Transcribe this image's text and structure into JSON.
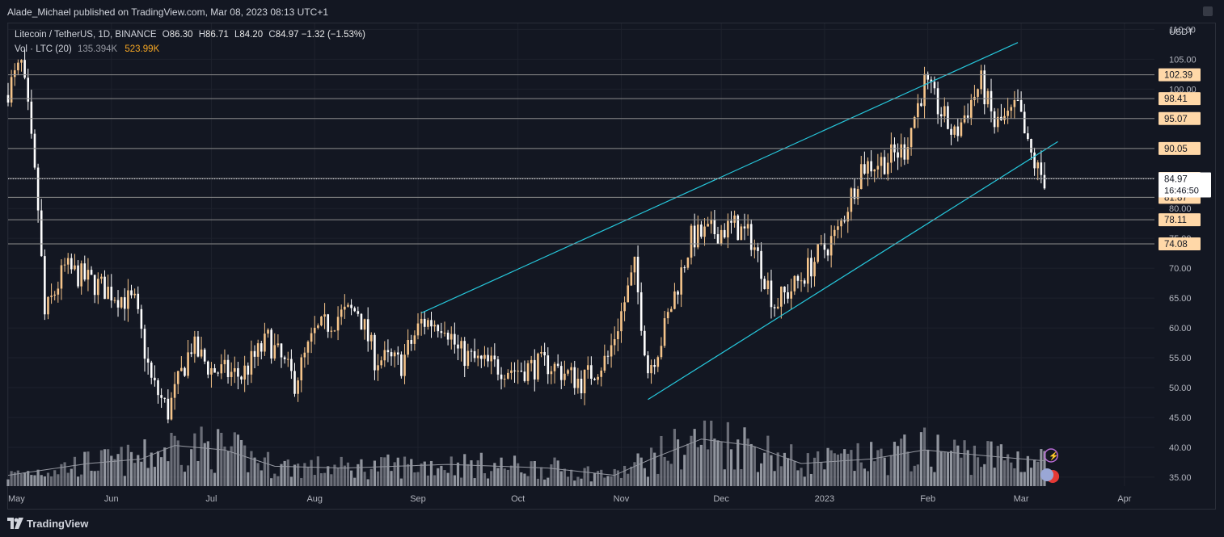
{
  "header": {
    "published_text": "Alade_Michael published on TradingView.com, Mar 08, 2023 08:13 UTC+1"
  },
  "legend": {
    "symbol": "Litecoin / TetherUS, 1D, BINANCE",
    "o_label": "O",
    "o_value": "86.30",
    "h_label": "H",
    "h_value": "86.71",
    "l_label": "L",
    "l_value": "84.20",
    "c_label": "C",
    "c_value": "84.97",
    "change": "−1.32 (−1.53%)",
    "vol_label": "Vol · LTC (20)",
    "vol_value": "135.394K",
    "vol_ma_value": "523.99K"
  },
  "footer": {
    "brand": "TradingView"
  },
  "colors": {
    "background": "#131722",
    "grid": "#1e222d",
    "up_candle": "#f5c48a",
    "down_candle": "#ffffff",
    "volume": "#b2b5be",
    "volume_ma": "#9598a1",
    "channel": "#26c6da",
    "level_line": "#8c8c8c",
    "level_tag": "#ffd8a8",
    "last_price_tag": "#ffffff"
  },
  "chart_data": {
    "type": "candlestick",
    "title": "Litecoin / TetherUS, 1D, BINANCE",
    "y_axis_unit": "USDT",
    "ylim": [
      33.5,
      111
    ],
    "y_ticks": [
      35,
      40,
      45,
      50,
      55,
      60,
      65,
      70,
      75,
      80,
      85,
      90,
      95,
      100,
      105,
      110
    ],
    "y_tick_labels": [
      "35.00",
      "40.00",
      "45.00",
      "50.00",
      "55.00",
      "60.00",
      "65.00",
      "70.00",
      "75.00",
      "80.00",
      "85.00",
      "90.00",
      "95.00",
      "100.00",
      "105.00",
      "110.00"
    ],
    "x_range": [
      "2022-05-01",
      "2023-04-10"
    ],
    "x_ticks": [
      {
        "label": "May",
        "date": "2022-05-01"
      },
      {
        "label": "Jun",
        "date": "2022-06-01"
      },
      {
        "label": "Jul",
        "date": "2022-07-01"
      },
      {
        "label": "Aug",
        "date": "2022-08-01"
      },
      {
        "label": "Sep",
        "date": "2022-09-01"
      },
      {
        "label": "Oct",
        "date": "2022-10-01"
      },
      {
        "label": "Nov",
        "date": "2022-11-01"
      },
      {
        "label": "Dec",
        "date": "2022-12-01"
      },
      {
        "label": "2023",
        "date": "2023-01-01"
      },
      {
        "label": "Feb",
        "date": "2023-02-01"
      },
      {
        "label": "Mar",
        "date": "2023-03-01"
      },
      {
        "label": "Apr",
        "date": "2023-04-01"
      }
    ],
    "close_path": [
      {
        "date": "2022-05-01",
        "close": 100
      },
      {
        "date": "2022-05-05",
        "close": 104
      },
      {
        "date": "2022-05-07",
        "close": 96
      },
      {
        "date": "2022-05-10",
        "close": 80
      },
      {
        "date": "2022-05-12",
        "close": 62
      },
      {
        "date": "2022-05-18",
        "close": 70
      },
      {
        "date": "2022-05-25",
        "close": 68
      },
      {
        "date": "2022-06-01",
        "close": 66
      },
      {
        "date": "2022-06-08",
        "close": 64
      },
      {
        "date": "2022-06-13",
        "close": 51
      },
      {
        "date": "2022-06-18",
        "close": 46
      },
      {
        "date": "2022-06-25",
        "close": 57
      },
      {
        "date": "2022-07-01",
        "close": 53
      },
      {
        "date": "2022-07-10",
        "close": 52
      },
      {
        "date": "2022-07-18",
        "close": 58
      },
      {
        "date": "2022-07-26",
        "close": 51
      },
      {
        "date": "2022-08-01",
        "close": 59
      },
      {
        "date": "2022-08-08",
        "close": 62
      },
      {
        "date": "2022-08-14",
        "close": 63
      },
      {
        "date": "2022-08-19",
        "close": 55
      },
      {
        "date": "2022-08-27",
        "close": 54
      },
      {
        "date": "2022-09-02",
        "close": 61
      },
      {
        "date": "2022-09-09",
        "close": 61
      },
      {
        "date": "2022-09-13",
        "close": 56
      },
      {
        "date": "2022-09-20",
        "close": 54
      },
      {
        "date": "2022-10-01",
        "close": 53
      },
      {
        "date": "2022-10-10",
        "close": 54
      },
      {
        "date": "2022-10-20",
        "close": 51
      },
      {
        "date": "2022-10-28",
        "close": 55
      },
      {
        "date": "2022-11-05",
        "close": 70
      },
      {
        "date": "2022-11-09",
        "close": 53
      },
      {
        "date": "2022-11-13",
        "close": 58
      },
      {
        "date": "2022-11-22",
        "close": 75
      },
      {
        "date": "2022-11-28",
        "close": 76
      },
      {
        "date": "2022-12-05",
        "close": 77
      },
      {
        "date": "2022-12-10",
        "close": 75
      },
      {
        "date": "2022-12-17",
        "close": 64
      },
      {
        "date": "2022-12-23",
        "close": 67
      },
      {
        "date": "2022-12-30",
        "close": 72
      },
      {
        "date": "2023-01-05",
        "close": 76
      },
      {
        "date": "2023-01-12",
        "close": 87
      },
      {
        "date": "2023-01-19",
        "close": 88
      },
      {
        "date": "2023-01-25",
        "close": 90
      },
      {
        "date": "2023-01-31",
        "close": 101
      },
      {
        "date": "2023-02-04",
        "close": 97
      },
      {
        "date": "2023-02-09",
        "close": 92
      },
      {
        "date": "2023-02-14",
        "close": 98
      },
      {
        "date": "2023-02-17",
        "close": 101
      },
      {
        "date": "2023-02-21",
        "close": 94
      },
      {
        "date": "2023-02-25",
        "close": 95
      },
      {
        "date": "2023-02-28",
        "close": 97
      },
      {
        "date": "2023-03-03",
        "close": 90
      },
      {
        "date": "2023-03-06",
        "close": 86.3
      },
      {
        "date": "2023-03-08",
        "close": 84.97
      }
    ],
    "volume_ma_path": [
      {
        "date": "2022-05-01",
        "value": 0.12
      },
      {
        "date": "2022-05-25",
        "value": 0.25
      },
      {
        "date": "2022-06-10",
        "value": 0.3
      },
      {
        "date": "2022-06-20",
        "value": 0.45
      },
      {
        "date": "2022-07-05",
        "value": 0.4
      },
      {
        "date": "2022-07-20",
        "value": 0.22
      },
      {
        "date": "2022-08-10",
        "value": 0.2
      },
      {
        "date": "2022-09-10",
        "value": 0.24
      },
      {
        "date": "2022-10-10",
        "value": 0.2
      },
      {
        "date": "2022-10-30",
        "value": 0.12
      },
      {
        "date": "2022-11-10",
        "value": 0.3
      },
      {
        "date": "2022-11-25",
        "value": 0.52
      },
      {
        "date": "2022-12-10",
        "value": 0.45
      },
      {
        "date": "2022-12-25",
        "value": 0.25
      },
      {
        "date": "2023-01-15",
        "value": 0.3
      },
      {
        "date": "2023-01-31",
        "value": 0.4
      },
      {
        "date": "2023-02-20",
        "value": 0.33
      },
      {
        "date": "2023-03-08",
        "value": 0.28
      }
    ],
    "channel_lines": [
      {
        "name": "upper",
        "from": {
          "date": "2022-09-02",
          "price": 62.5
        },
        "to": {
          "date": "2023-02-28",
          "price": 107.8
        }
      },
      {
        "name": "lower",
        "from": {
          "date": "2022-11-09",
          "price": 48
        },
        "to": {
          "date": "2023-03-12",
          "price": 91.2
        }
      }
    ],
    "horizontal_levels": [
      "102.39",
      "98.41",
      "95.07",
      "90.05",
      "85.03",
      "81.87",
      "78.11",
      "74.08"
    ],
    "last_price": {
      "value": "84.97",
      "countdown": "16:46:50"
    }
  }
}
